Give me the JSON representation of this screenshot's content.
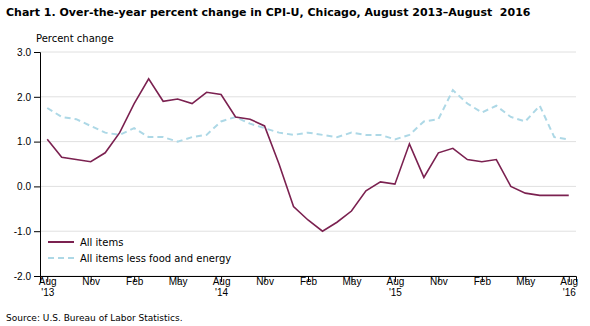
{
  "chart_data": {
    "type": "line",
    "title": "Chart 1. Over-the-year percent change in CPI-U, Chicago, August 2013–August  2016",
    "y_label": "Percent change",
    "source": "Source: U.S. Bureau of Labor Statistics.",
    "categories": [
      "Aug\n'13",
      null,
      null,
      "Nov",
      null,
      null,
      "Feb",
      null,
      null,
      "May",
      null,
      null,
      "Aug\n'14",
      null,
      null,
      "Nov",
      null,
      null,
      "Feb",
      null,
      null,
      "May",
      null,
      null,
      "Aug\n'15",
      null,
      null,
      "Nov",
      null,
      null,
      "Feb",
      null,
      null,
      "May",
      null,
      null,
      "Aug\n'16"
    ],
    "series": [
      {
        "name": "All items",
        "color": "#7b2150",
        "line_style": "solid",
        "values": [
          1.05,
          0.65,
          0.6,
          0.55,
          0.75,
          1.2,
          1.85,
          2.4,
          1.9,
          1.95,
          1.85,
          2.1,
          2.05,
          1.55,
          1.5,
          1.35,
          0.5,
          -0.45,
          -0.75,
          -1.0,
          -0.8,
          -0.55,
          -0.1,
          0.1,
          0.05,
          0.95,
          0.2,
          0.75,
          0.85,
          0.6,
          0.55,
          0.6,
          0.0,
          -0.15,
          -0.2,
          -0.2,
          -0.2
        ]
      },
      {
        "name": "All items less food and energy",
        "color": "#add8e6",
        "line_style": "dashed",
        "values": [
          1.75,
          1.55,
          1.5,
          1.35,
          1.2,
          1.15,
          1.3,
          1.1,
          1.1,
          1.0,
          1.1,
          1.15,
          1.45,
          1.55,
          1.4,
          1.3,
          1.2,
          1.15,
          1.2,
          1.15,
          1.1,
          1.2,
          1.15,
          1.15,
          1.05,
          1.15,
          1.45,
          1.5,
          2.15,
          1.85,
          1.65,
          1.8,
          1.55,
          1.45,
          1.8,
          1.1,
          1.05
        ]
      }
    ],
    "ylim": [
      -2.0,
      3.0
    ],
    "yticks": [
      {
        "value": -2.0,
        "label": "-2.0"
      },
      {
        "value": -1.0,
        "label": "-1.0"
      },
      {
        "value": 0.0,
        "label": "0.0"
      },
      {
        "value": 1.0,
        "label": "1.0"
      },
      {
        "value": 2.0,
        "label": "2.0"
      },
      {
        "value": 3.0,
        "label": "3.0"
      }
    ],
    "grid": true,
    "legend": "lower left"
  }
}
